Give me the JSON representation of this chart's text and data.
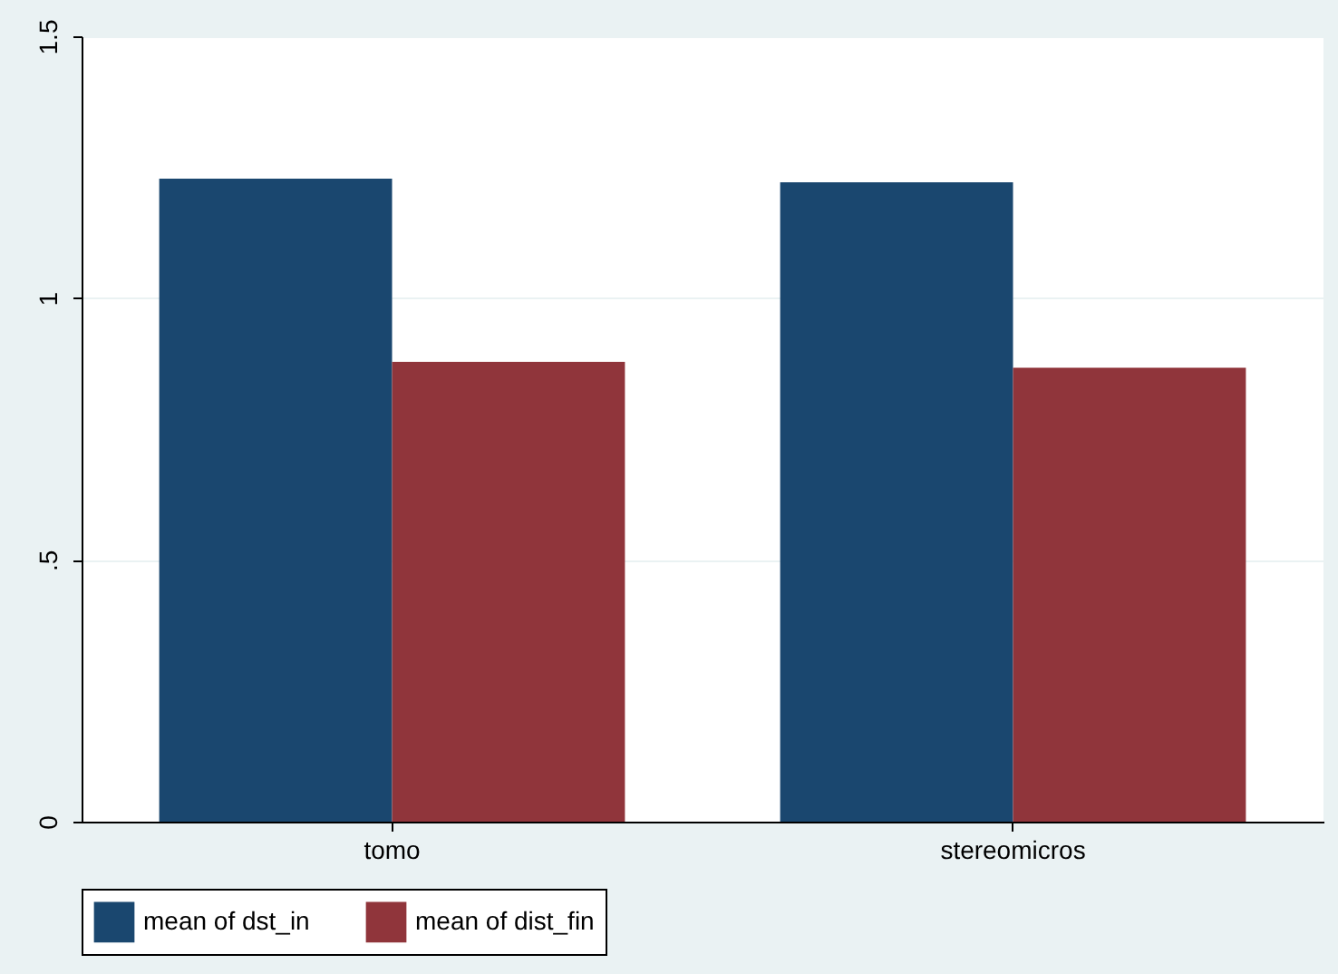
{
  "chart_data": {
    "type": "bar",
    "categories": [
      "tomo",
      "stereomicros"
    ],
    "series": [
      {
        "name": "mean of dst_in",
        "color": "#1a476f",
        "values": [
          1.228,
          1.221
        ]
      },
      {
        "name": "mean of dist_fin",
        "color": "#90353b",
        "values": [
          0.878,
          0.867
        ]
      }
    ],
    "ylim": [
      0,
      1.5
    ],
    "yticks": [
      0,
      {
        "value": 0.5,
        "label": ".5"
      },
      1,
      1.5
    ],
    "grid": "y",
    "legend": "bottom"
  }
}
